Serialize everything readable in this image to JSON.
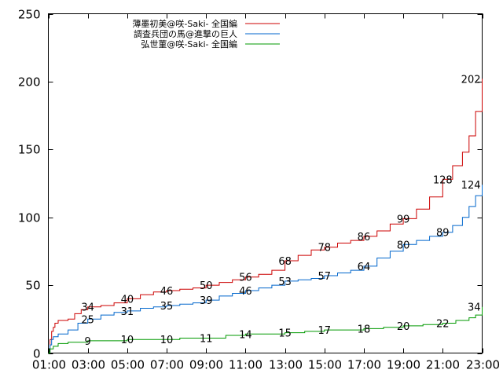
{
  "chart_data": {
    "type": "line",
    "title": "",
    "xlabel": "",
    "ylabel": "",
    "xlim": [
      "01:00",
      "23:00"
    ],
    "ylim": [
      0,
      250
    ],
    "grid": false,
    "legend_position": "top-left",
    "x_ticks": [
      "01:00",
      "03:00",
      "05:00",
      "07:00",
      "09:00",
      "11:00",
      "13:00",
      "15:00",
      "17:00",
      "19:00",
      "21:00",
      "23:00"
    ],
    "y_ticks": [
      "0",
      "50",
      "100",
      "150",
      "200",
      "250"
    ],
    "series": [
      {
        "name": "薄墨初美@咲-Saki- 全国編",
        "color": "#cc0000",
        "points": [
          [
            "01:00",
            0
          ],
          [
            "01:05",
            10
          ],
          [
            "01:10",
            16
          ],
          [
            "01:15",
            19
          ],
          [
            "01:20",
            22
          ],
          [
            "01:30",
            24
          ],
          [
            "02:00",
            25
          ],
          [
            "02:20",
            29
          ],
          [
            "02:40",
            32
          ],
          [
            "03:00",
            34
          ],
          [
            "03:40",
            35
          ],
          [
            "04:20",
            37
          ],
          [
            "05:00",
            40
          ],
          [
            "05:40",
            43
          ],
          [
            "06:20",
            45
          ],
          [
            "07:00",
            46
          ],
          [
            "07:40",
            47
          ],
          [
            "08:20",
            48
          ],
          [
            "09:00",
            50
          ],
          [
            "09:40",
            52
          ],
          [
            "10:20",
            54
          ],
          [
            "11:00",
            56
          ],
          [
            "11:40",
            58
          ],
          [
            "12:20",
            61
          ],
          [
            "13:00",
            68
          ],
          [
            "13:40",
            72
          ],
          [
            "14:20",
            76
          ],
          [
            "15:00",
            78
          ],
          [
            "15:40",
            81
          ],
          [
            "16:20",
            83
          ],
          [
            "17:00",
            86
          ],
          [
            "17:40",
            90
          ],
          [
            "18:20",
            95
          ],
          [
            "19:00",
            99
          ],
          [
            "19:40",
            106
          ],
          [
            "20:20",
            115
          ],
          [
            "21:00",
            128
          ],
          [
            "21:30",
            138
          ],
          [
            "22:00",
            148
          ],
          [
            "22:20",
            160
          ],
          [
            "22:40",
            178
          ],
          [
            "23:00",
            202
          ]
        ],
        "labels": [
          {
            "x": "03:00",
            "value": "34"
          },
          {
            "x": "05:00",
            "value": "40"
          },
          {
            "x": "07:00",
            "value": "46"
          },
          {
            "x": "09:00",
            "value": "50"
          },
          {
            "x": "11:00",
            "value": "56"
          },
          {
            "x": "13:00",
            "value": "68"
          },
          {
            "x": "15:00",
            "value": "78"
          },
          {
            "x": "17:00",
            "value": "86"
          },
          {
            "x": "19:00",
            "value": "99"
          },
          {
            "x": "21:00",
            "value": "128"
          },
          {
            "x": "23:00",
            "value": "202"
          }
        ]
      },
      {
        "name": "調査兵団の馬@進撃の巨人",
        "color": "#0066cc",
        "points": [
          [
            "01:00",
            0
          ],
          [
            "01:05",
            6
          ],
          [
            "01:10",
            10
          ],
          [
            "01:15",
            12
          ],
          [
            "01:30",
            14
          ],
          [
            "02:00",
            17
          ],
          [
            "02:30",
            22
          ],
          [
            "03:00",
            25
          ],
          [
            "03:40",
            28
          ],
          [
            "04:20",
            30
          ],
          [
            "05:00",
            31
          ],
          [
            "05:40",
            33
          ],
          [
            "06:20",
            34
          ],
          [
            "07:00",
            35
          ],
          [
            "07:40",
            36
          ],
          [
            "08:20",
            37
          ],
          [
            "09:00",
            39
          ],
          [
            "09:40",
            42
          ],
          [
            "10:20",
            44
          ],
          [
            "11:00",
            46
          ],
          [
            "11:40",
            48
          ],
          [
            "12:20",
            50
          ],
          [
            "13:00",
            53
          ],
          [
            "13:40",
            54
          ],
          [
            "14:20",
            55
          ],
          [
            "15:00",
            57
          ],
          [
            "15:40",
            59
          ],
          [
            "16:20",
            61
          ],
          [
            "17:00",
            64
          ],
          [
            "17:40",
            70
          ],
          [
            "18:20",
            75
          ],
          [
            "19:00",
            80
          ],
          [
            "19:40",
            83
          ],
          [
            "20:20",
            86
          ],
          [
            "21:00",
            89
          ],
          [
            "21:30",
            94
          ],
          [
            "22:00",
            100
          ],
          [
            "22:20",
            108
          ],
          [
            "22:40",
            116
          ],
          [
            "23:00",
            124
          ]
        ],
        "labels": [
          {
            "x": "03:00",
            "value": "25"
          },
          {
            "x": "05:00",
            "value": "31"
          },
          {
            "x": "07:00",
            "value": "35"
          },
          {
            "x": "09:00",
            "value": "39"
          },
          {
            "x": "11:00",
            "value": "46"
          },
          {
            "x": "13:00",
            "value": "53"
          },
          {
            "x": "15:00",
            "value": "57"
          },
          {
            "x": "17:00",
            "value": "64"
          },
          {
            "x": "19:00",
            "value": "80"
          },
          {
            "x": "21:00",
            "value": "89"
          },
          {
            "x": "23:00",
            "value": "124"
          }
        ]
      },
      {
        "name": "弘世菫@咲-Saki- 全国編",
        "color": "#009900",
        "points": [
          [
            "01:00",
            0
          ],
          [
            "01:05",
            3
          ],
          [
            "01:15",
            5
          ],
          [
            "01:30",
            7
          ],
          [
            "02:00",
            8
          ],
          [
            "03:00",
            9
          ],
          [
            "05:00",
            10
          ],
          [
            "07:00",
            10
          ],
          [
            "07:40",
            11
          ],
          [
            "09:00",
            11
          ],
          [
            "10:00",
            13
          ],
          [
            "11:00",
            14
          ],
          [
            "12:00",
            14
          ],
          [
            "13:00",
            15
          ],
          [
            "14:00",
            16
          ],
          [
            "15:00",
            17
          ],
          [
            "17:00",
            18
          ],
          [
            "18:00",
            19
          ],
          [
            "19:00",
            20
          ],
          [
            "20:00",
            21
          ],
          [
            "21:00",
            22
          ],
          [
            "21:40",
            24
          ],
          [
            "22:20",
            26
          ],
          [
            "22:40",
            28
          ],
          [
            "23:00",
            34
          ]
        ],
        "labels": [
          {
            "x": "03:00",
            "value": "9"
          },
          {
            "x": "05:00",
            "value": "10"
          },
          {
            "x": "07:00",
            "value": "10"
          },
          {
            "x": "09:00",
            "value": "11"
          },
          {
            "x": "11:00",
            "value": "14"
          },
          {
            "x": "13:00",
            "value": "15"
          },
          {
            "x": "15:00",
            "value": "17"
          },
          {
            "x": "17:00",
            "value": "18"
          },
          {
            "x": "19:00",
            "value": "20"
          },
          {
            "x": "21:00",
            "value": "22"
          },
          {
            "x": "23:00",
            "value": "34"
          }
        ]
      }
    ]
  }
}
